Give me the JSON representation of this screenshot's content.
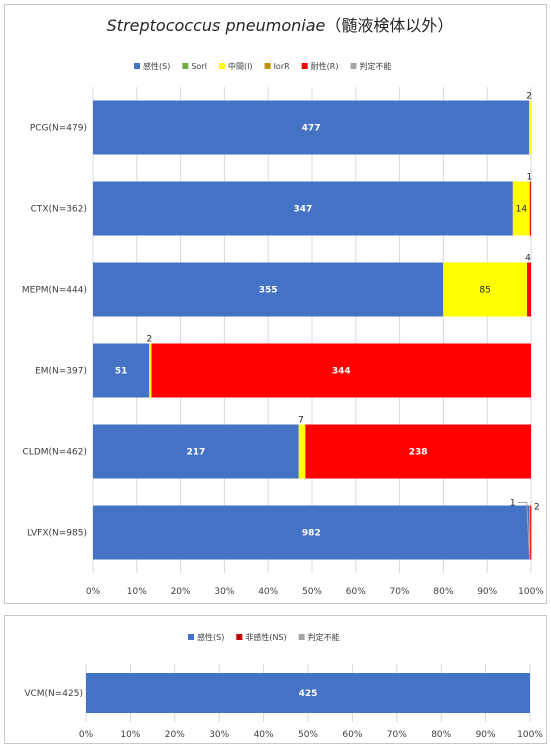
{
  "chart_data": [
    {
      "type": "bar",
      "orientation": "horizontal",
      "stacked": "percent",
      "title": "Streptococcus pneumoniae",
      "title_suffix": "（髄液検体以外）",
      "legend_position": "top",
      "xlim": [
        0,
        100
      ],
      "x_ticks": [
        "0%",
        "10%",
        "20%",
        "30%",
        "40%",
        "50%",
        "60%",
        "70%",
        "80%",
        "90%",
        "100%"
      ],
      "grid": true,
      "categories": [
        "PCG(N=479)",
        "CTX(N=362)",
        "MEPM(N=444)",
        "EM(N=397)",
        "CLDM(N=462)",
        "LVFX(N=985)"
      ],
      "series": [
        {
          "name": "感性(S)",
          "color": "#4472c4",
          "values": [
            477,
            347,
            355,
            51,
            217,
            982
          ]
        },
        {
          "name": "SorI",
          "color": "#70ad47",
          "values": [
            0,
            0,
            0,
            0,
            0,
            0
          ]
        },
        {
          "name": "中間(I)",
          "color": "#ffff00",
          "values": [
            2,
            14,
            85,
            2,
            7,
            1
          ]
        },
        {
          "name": "IorR",
          "color": "#bf9000",
          "values": [
            0,
            0,
            0,
            0,
            0,
            0
          ]
        },
        {
          "name": "耐性(R)",
          "color": "#ff0000",
          "values": [
            0,
            1,
            4,
            344,
            238,
            2
          ]
        },
        {
          "name": "判定不能",
          "color": "#a5a5a5",
          "values": [
            0,
            0,
            0,
            0,
            0,
            0
          ]
        }
      ],
      "totals": [
        479,
        362,
        444,
        397,
        462,
        985
      ],
      "data_labels": [
        {
          "category": "PCG(N=479)",
          "series": "感性(S)",
          "text": "477",
          "placement": "inside"
        },
        {
          "category": "PCG(N=479)",
          "series": "中間(I)",
          "text": "2",
          "placement": "above"
        },
        {
          "category": "CTX(N=362)",
          "series": "感性(S)",
          "text": "347",
          "placement": "inside"
        },
        {
          "category": "CTX(N=362)",
          "series": "中間(I)",
          "text": "14",
          "placement": "inside"
        },
        {
          "category": "CTX(N=362)",
          "series": "耐性(R)",
          "text": "1",
          "placement": "above"
        },
        {
          "category": "MEPM(N=444)",
          "series": "感性(S)",
          "text": "355",
          "placement": "inside"
        },
        {
          "category": "MEPM(N=444)",
          "series": "中間(I)",
          "text": "85",
          "placement": "inside"
        },
        {
          "category": "MEPM(N=444)",
          "series": "耐性(R)",
          "text": "4",
          "placement": "above"
        },
        {
          "category": "EM(N=397)",
          "series": "感性(S)",
          "text": "51",
          "placement": "inside"
        },
        {
          "category": "EM(N=397)",
          "series": "中間(I)",
          "text": "2",
          "placement": "above"
        },
        {
          "category": "EM(N=397)",
          "series": "耐性(R)",
          "text": "344",
          "placement": "inside"
        },
        {
          "category": "CLDM(N=462)",
          "series": "感性(S)",
          "text": "217",
          "placement": "inside"
        },
        {
          "category": "CLDM(N=462)",
          "series": "中間(I)",
          "text": "7",
          "placement": "above"
        },
        {
          "category": "CLDM(N=462)",
          "series": "耐性(R)",
          "text": "238",
          "placement": "inside"
        },
        {
          "category": "LVFX(N=985)",
          "series": "感性(S)",
          "text": "982",
          "placement": "inside"
        },
        {
          "category": "LVFX(N=985)",
          "series": "中間(I)",
          "text": "1",
          "placement": "leader-left"
        },
        {
          "category": "LVFX(N=985)",
          "series": "耐性(R)",
          "text": "2",
          "placement": "right"
        }
      ]
    },
    {
      "type": "bar",
      "orientation": "horizontal",
      "stacked": "percent",
      "title": "",
      "legend_position": "top",
      "xlim": [
        0,
        100
      ],
      "x_ticks": [
        "0%",
        "10%",
        "20%",
        "30%",
        "40%",
        "50%",
        "60%",
        "70%",
        "80%",
        "90%",
        "100%"
      ],
      "grid": true,
      "categories": [
        "VCM(N=425)"
      ],
      "series": [
        {
          "name": "感性(S)",
          "color": "#4472c4",
          "values": [
            425
          ]
        },
        {
          "name": "非感性(NS)",
          "color": "#c00000",
          "values": [
            0
          ]
        },
        {
          "name": "判定不能",
          "color": "#a5a5a5",
          "values": [
            0
          ]
        }
      ],
      "totals": [
        425
      ],
      "data_labels": [
        {
          "category": "VCM(N=425)",
          "series": "感性(S)",
          "text": "425",
          "placement": "inside"
        }
      ]
    }
  ]
}
